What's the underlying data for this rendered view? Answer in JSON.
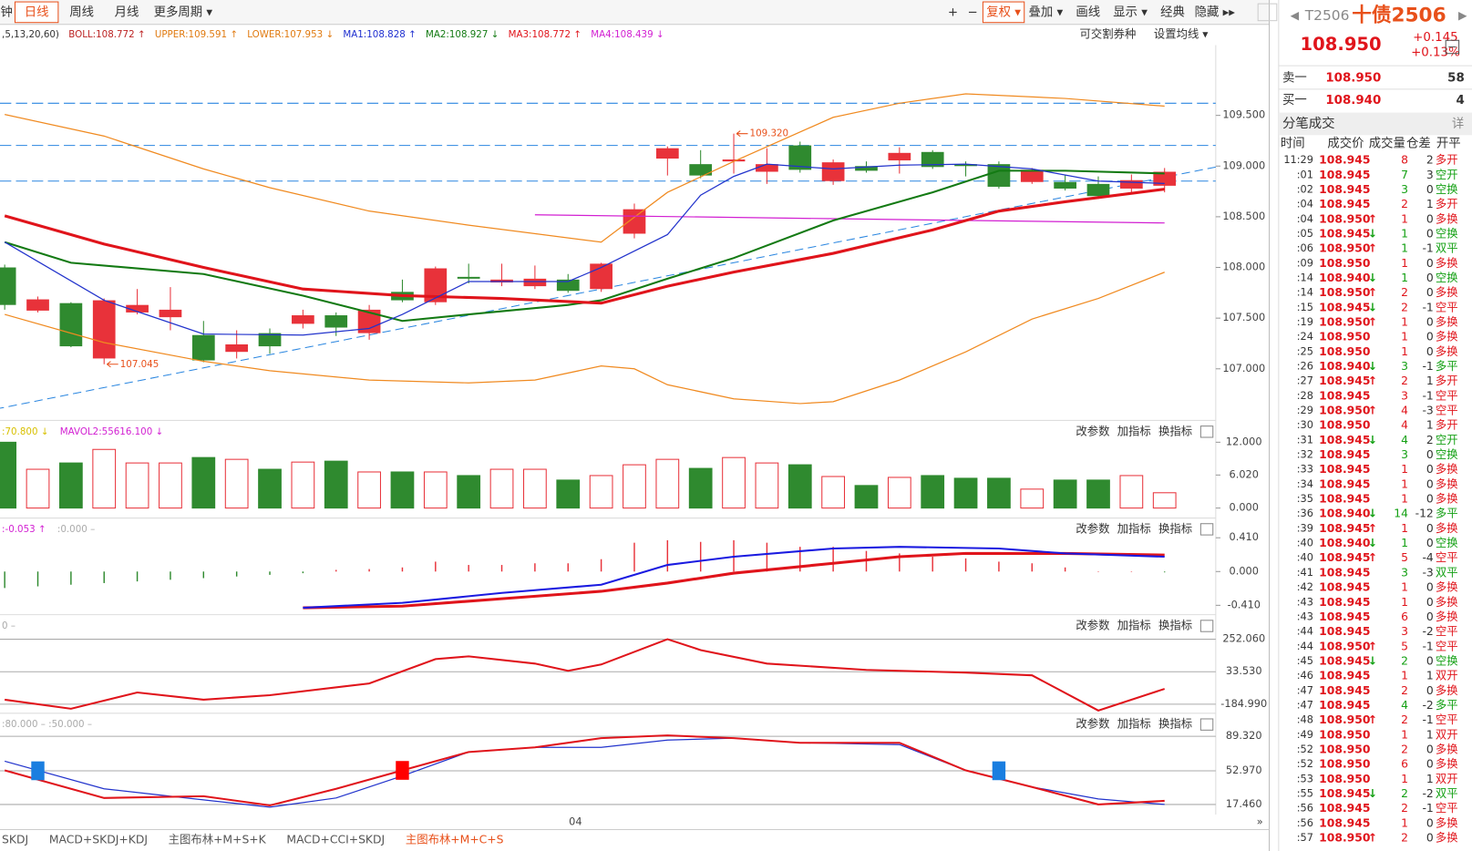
{
  "toolbar": {
    "left": [
      "钟",
      "日线",
      "周线",
      "月线",
      "更多周期 ▾"
    ],
    "active": 1,
    "right": [
      "+",
      "−",
      "复权 ▾",
      "叠加 ▾",
      "画线",
      "显示 ▾",
      "经典",
      "隐藏 ▸▸"
    ],
    "active_right": 2
  },
  "legend": [
    {
      "text": ",5,13,20,60)",
      "color": "#333"
    },
    {
      "text": "BOLL:108.772 ↑",
      "color": "#b22"
    },
    {
      "text": "UPPER:109.591 ↑",
      "color": "#e07a10"
    },
    {
      "text": "LOWER:107.953 ↓",
      "color": "#e07a10"
    },
    {
      "text": "MA1:108.828 ↑",
      "color": "#1f2fd0"
    },
    {
      "text": "MA2:108.927 ↓",
      "color": "#137a13"
    },
    {
      "text": "MA3:108.772 ↑",
      "color": "#e0141b"
    },
    {
      "text": "MA4:108.439 ↓",
      "color": "#d21fd2"
    }
  ],
  "main_buttons": [
    "可交割券种",
    "设置均线 ▾"
  ],
  "main": {
    "ylim": [
      106.537,
      110.194
    ],
    "yticks": [
      {
        "value": 109.5,
        "label": "109.500"
      },
      {
        "value": 109,
        "label": "109.000"
      },
      {
        "value": 108.5,
        "label": "108.500"
      },
      {
        "value": 108,
        "label": "108.000"
      },
      {
        "value": 107.5,
        "label": "107.500"
      },
      {
        "value": 107,
        "label": "107.000"
      }
    ],
    "candles": {
      "open": [
        108.0,
        107.574,
        107.648,
        107.102,
        107.556,
        107.509,
        107.333,
        107.167,
        107.352,
        107.444,
        107.528,
        107.352,
        107.759,
        107.657,
        107.907,
        107.852,
        107.815,
        107.88,
        107.787,
        108.333,
        109.074,
        109.019,
        109.046,
        108.944,
        109.204,
        108.852,
        109.0,
        109.056,
        109.139,
        109.019,
        109.019,
        108.843,
        108.843,
        108.824,
        108.778,
        108.806
      ],
      "high": [
        108.028,
        107.713,
        107.657,
        107.694,
        107.787,
        107.806,
        107.472,
        107.38,
        107.398,
        107.583,
        107.556,
        107.63,
        107.88,
        108.009,
        108.037,
        108.037,
        108.019,
        107.935,
        108.046,
        108.63,
        109.194,
        109.157,
        109.32,
        109.176,
        109.241,
        109.065,
        109.046,
        109.185,
        109.157,
        109.046,
        109.046,
        108.981,
        108.917,
        108.898,
        108.917,
        108.981
      ],
      "low": [
        107.583,
        107.556,
        107.213,
        107.045,
        107.537,
        107.38,
        107.065,
        107.102,
        107.148,
        107.398,
        107.324,
        107.287,
        107.657,
        107.63,
        107.843,
        107.815,
        107.787,
        107.75,
        107.759,
        108.287,
        108.907,
        108.88,
        108.926,
        108.824,
        108.935,
        108.815,
        108.935,
        108.926,
        108.972,
        108.898,
        108.778,
        108.824,
        108.759,
        108.676,
        108.741,
        108.741
      ],
      "close": [
        107.63,
        107.685,
        107.222,
        107.676,
        107.63,
        107.583,
        107.083,
        107.241,
        107.222,
        107.528,
        107.407,
        107.583,
        107.676,
        107.991,
        107.889,
        107.88,
        107.889,
        107.769,
        108.037,
        108.574,
        109.176,
        108.907,
        109.065,
        109.019,
        108.963,
        109.037,
        108.954,
        109.13,
        108.991,
        109.0,
        108.796,
        108.963,
        108.778,
        108.704,
        108.861,
        108.944
      ]
    },
    "lines": [
      {
        "color": "#f08a20",
        "width": 1.2,
        "x": [
          0,
          3,
          6,
          8,
          11,
          14,
          18,
          20,
          22,
          25,
          27,
          29,
          32,
          35
        ],
        "values": [
          109.509,
          109.296,
          108.972,
          108.787,
          108.556,
          108.417,
          108.25,
          108.741,
          109.046,
          109.481,
          109.62,
          109.713,
          109.667,
          109.591
        ]
      },
      {
        "color": "#f08a20",
        "width": 1.2,
        "x": [
          0,
          3,
          6,
          8,
          11,
          14,
          16,
          18,
          19,
          20,
          22,
          24,
          25,
          27,
          29,
          31,
          33,
          35
        ],
        "values": [
          107.537,
          107.259,
          107.074,
          106.981,
          106.889,
          106.861,
          106.889,
          107.028,
          107.0,
          106.843,
          106.704,
          106.657,
          106.676,
          106.889,
          107.167,
          107.491,
          107.694,
          107.953
        ]
      },
      {
        "color": "#d21fd2",
        "width": 1.2,
        "x": [
          16,
          25,
          35
        ],
        "values": [
          108.519,
          108.481,
          108.439
        ]
      },
      {
        "color": "#137a13",
        "width": 2,
        "x": [
          0,
          2,
          6,
          9,
          12,
          14,
          17,
          18,
          20,
          22,
          25,
          28,
          30,
          32,
          35
        ],
        "values": [
          108.25,
          108.046,
          107.935,
          107.722,
          107.472,
          107.537,
          107.63,
          107.676,
          107.889,
          108.093,
          108.463,
          108.741,
          108.954,
          108.954,
          108.927
        ]
      },
      {
        "color": "#e0141b",
        "width": 3,
        "x": [
          0,
          3,
          6,
          9,
          12,
          15,
          18,
          20,
          22,
          25,
          28,
          30,
          32,
          35
        ],
        "values": [
          108.509,
          108.231,
          108.0,
          107.787,
          107.722,
          107.694,
          107.648,
          107.815,
          107.954,
          108.139,
          108.37,
          108.556,
          108.648,
          108.772
        ]
      },
      {
        "color": "#2233cc",
        "width": 1.2,
        "x": [
          0,
          3,
          6,
          9,
          11,
          12,
          14,
          17,
          18,
          20,
          21,
          22,
          23,
          25,
          27,
          29,
          31,
          33,
          35
        ],
        "values": [
          108.25,
          107.676,
          107.343,
          107.333,
          107.398,
          107.537,
          107.861,
          107.861,
          108.0,
          108.324,
          108.713,
          108.898,
          109.019,
          108.972,
          109.009,
          109.019,
          108.972,
          108.852,
          108.828
        ]
      }
    ],
    "annotations": [
      {
        "index": 22,
        "text": "109.320",
        "at": "high"
      },
      {
        "index": 3,
        "text": "107.045",
        "at": "low"
      }
    ]
  },
  "volume": {
    "legend": [
      {
        "text": ":70.800 ↓",
        "color": "#d8c000"
      },
      {
        "text": "MAVOL2:55616.100 ↓",
        "color": "#d21fd2"
      }
    ],
    "ylim": [
      -1.48,
      15.29
    ],
    "yticks": [
      {
        "value": 12,
        "label": "12.000"
      },
      {
        "value": 6.02,
        "label": "6.020"
      },
      {
        "value": 0,
        "label": "0.000"
      }
    ],
    "values": [
      12.0,
      7.07,
      8.22,
      10.69,
      8.22,
      8.22,
      9.21,
      8.88,
      7.07,
      8.38,
      8.55,
      6.58,
      6.58,
      6.58,
      5.92,
      7.07,
      7.07,
      5.1,
      5.92,
      7.89,
      8.88,
      7.23,
      9.21,
      8.22,
      7.89,
      5.75,
      4.11,
      5.59,
      5.92,
      5.43,
      5.43,
      3.45,
      5.1,
      5.1,
      5.92,
      2.79
    ]
  },
  "macd": {
    "legend": [
      {
        "text": ":-0.053 ↑",
        "color": "#d21fd2"
      },
      {
        "text": ":0.000 –",
        "color": "#aaa"
      }
    ],
    "ylim": [
      -0.524,
      0.604
    ],
    "yticks": [
      {
        "value": 0.41,
        "label": "0.410"
      },
      {
        "value": 0,
        "label": "0.000"
      },
      {
        "value": -0.41,
        "label": "-0.410"
      }
    ],
    "bars": [
      -0.2,
      -0.18,
      -0.16,
      -0.14,
      -0.12,
      -0.1,
      -0.08,
      -0.06,
      -0.04,
      -0.02,
      0.02,
      0.03,
      0.05,
      0.12,
      0.08,
      0.08,
      0.1,
      0.1,
      0.15,
      0.35,
      0.38,
      0.36,
      0.38,
      0.35,
      0.3,
      0.3,
      0.25,
      0.22,
      0.18,
      0.16,
      0.12,
      0.1,
      0.05,
      0.0,
      0.0,
      -0.01
    ],
    "lines": [
      {
        "color": "#e0141b",
        "width": 3,
        "x": [
          9,
          12,
          15,
          18,
          20,
          22,
          25,
          27,
          29,
          32,
          35
        ],
        "values": [
          -0.44,
          -0.42,
          -0.33,
          -0.24,
          -0.14,
          -0.02,
          0.1,
          0.18,
          0.22,
          0.22,
          0.2
        ]
      },
      {
        "color": "#1a1ae0",
        "width": 2,
        "x": [
          9,
          12,
          15,
          18,
          20,
          22,
          25,
          27,
          30,
          32,
          35
        ],
        "values": [
          -0.44,
          -0.38,
          -0.26,
          -0.16,
          0.08,
          0.18,
          0.28,
          0.3,
          0.28,
          0.22,
          0.18
        ]
      }
    ]
  },
  "cci": {
    "legend": [
      {
        "text": "0 –",
        "color": "#aaa"
      }
    ],
    "ylim": [
      -245.7,
      391.7
    ],
    "grid": true,
    "yticks": [
      {
        "value": 252.06,
        "label": "252.060"
      },
      {
        "value": 33.53,
        "label": "33.530"
      },
      {
        "value": -184.99,
        "label": "-184.990"
      }
    ],
    "lines": [
      {
        "color": "#e0141b",
        "width": 2,
        "x": [
          0,
          2,
          4,
          6,
          8,
          11,
          13,
          14,
          16,
          17,
          18,
          20,
          21,
          23,
          26,
          29,
          31,
          33,
          35
        ],
        "values": [
          -154.6,
          -215.3,
          -106.1,
          -154.6,
          -124.3,
          -45.4,
          118.5,
          136.7,
          88.2,
          39.6,
          82.1,
          252.06,
          179.2,
          88.2,
          45.7,
          27.5,
          9.3,
          -227.5,
          -81.8
        ]
      }
    ]
  },
  "kdj": {
    "legend": [
      {
        "text": ":80.000 –  :50.000 –",
        "color": "#aaa"
      }
    ],
    "ylim": [
      6.8,
      109.7
    ],
    "grid": true,
    "yticks": [
      {
        "value": 89.32,
        "label": "89.320"
      },
      {
        "value": 52.97,
        "label": "52.970"
      },
      {
        "value": 17.46,
        "label": "17.460"
      }
    ],
    "lines": [
      {
        "color": "#2233cc",
        "width": 1.2,
        "x": [
          0,
          3,
          5,
          8,
          10,
          12,
          14,
          16,
          18,
          20,
          22,
          24,
          27,
          29,
          31,
          33,
          35
        ],
        "values": [
          63.1,
          34.0,
          26.2,
          14.6,
          24.3,
          47.6,
          72.8,
          77.7,
          77.7,
          85.4,
          87.4,
          82.5,
          80.6,
          53.4,
          35.9,
          23.3,
          17.5
        ]
      },
      {
        "color": "#e0141b",
        "width": 2,
        "x": [
          0,
          3,
          6,
          8,
          10,
          12,
          14,
          16,
          18,
          20,
          22,
          24,
          27,
          29,
          31,
          33,
          35
        ],
        "values": [
          53.4,
          24.3,
          26.2,
          16.5,
          34.0,
          53.4,
          72.8,
          77.7,
          87.4,
          90.3,
          87.4,
          82.5,
          82.5,
          53.4,
          35.9,
          17.5,
          21.3
        ]
      }
    ]
  },
  "panel_buttons": [
    "改参数",
    "加指标",
    "换指标"
  ],
  "x_label": "04",
  "tabs": [
    "SKDJ",
    "MACD+SKDJ+KDJ",
    "主图布林+M+S+K",
    "MACD+CCI+SKDJ",
    "主图布林+M+C+S"
  ],
  "active_tab": 4,
  "quote": {
    "code": "T2506",
    "name": "十债2506",
    "price": "108.950",
    "change": "+0.145",
    "pct": "+0.13%",
    "book": [
      [
        "卖一",
        "108.950",
        "58"
      ],
      [
        "买一",
        "108.940",
        "4"
      ]
    ],
    "trades_title": "分笔成交",
    "detail": "详",
    "headers": [
      "时间",
      "成交价",
      "成交量",
      "仓差",
      "开平"
    ],
    "trades": [
      [
        "11:29",
        "108.945",
        "",
        "8",
        "2",
        "多开"
      ],
      [
        ":01",
        "108.945",
        "",
        "7",
        "3",
        "空开"
      ],
      [
        ":02",
        "108.945",
        "",
        "3",
        "0",
        "空换"
      ],
      [
        ":04",
        "108.945",
        "",
        "2",
        "1",
        "多开"
      ],
      [
        ":04",
        "108.950",
        "↑",
        "1",
        "0",
        "多换"
      ],
      [
        ":05",
        "108.945",
        "↓",
        "1",
        "0",
        "空换"
      ],
      [
        ":06",
        "108.950",
        "↑",
        "1",
        "-1",
        "双平"
      ],
      [
        ":09",
        "108.950",
        "",
        "1",
        "0",
        "多换"
      ],
      [
        ":14",
        "108.940",
        "↓",
        "1",
        "0",
        "空换"
      ],
      [
        ":14",
        "108.950",
        "↑",
        "2",
        "0",
        "多换"
      ],
      [
        ":15",
        "108.945",
        "↓",
        "2",
        "-1",
        "空平"
      ],
      [
        ":19",
        "108.950",
        "↑",
        "1",
        "0",
        "多换"
      ],
      [
        ":24",
        "108.950",
        "",
        "1",
        "0",
        "多换"
      ],
      [
        ":25",
        "108.950",
        "",
        "1",
        "0",
        "多换"
      ],
      [
        ":26",
        "108.940",
        "↓",
        "3",
        "-1",
        "多平"
      ],
      [
        ":27",
        "108.945",
        "↑",
        "2",
        "1",
        "多开"
      ],
      [
        ":28",
        "108.945",
        "",
        "3",
        "-1",
        "空平"
      ],
      [
        ":29",
        "108.950",
        "↑",
        "4",
        "-3",
        "空平"
      ],
      [
        ":30",
        "108.950",
        "",
        "4",
        "1",
        "多开"
      ],
      [
        ":31",
        "108.945",
        "↓",
        "4",
        "2",
        "空开"
      ],
      [
        ":32",
        "108.945",
        "",
        "3",
        "0",
        "空换"
      ],
      [
        ":33",
        "108.945",
        "",
        "1",
        "0",
        "多换"
      ],
      [
        ":34",
        "108.945",
        "",
        "1",
        "0",
        "多换"
      ],
      [
        ":35",
        "108.945",
        "",
        "1",
        "0",
        "多换"
      ],
      [
        ":36",
        "108.940",
        "↓",
        "14",
        "-12",
        "多平"
      ],
      [
        ":39",
        "108.945",
        "↑",
        "1",
        "0",
        "多换"
      ],
      [
        ":40",
        "108.940",
        "↓",
        "1",
        "0",
        "空换"
      ],
      [
        ":40",
        "108.945",
        "↑",
        "5",
        "-4",
        "空平"
      ],
      [
        ":41",
        "108.945",
        "",
        "3",
        "-3",
        "双平"
      ],
      [
        ":42",
        "108.945",
        "",
        "1",
        "0",
        "多换"
      ],
      [
        ":43",
        "108.945",
        "",
        "1",
        "0",
        "多换"
      ],
      [
        ":43",
        "108.945",
        "",
        "6",
        "0",
        "多换"
      ],
      [
        ":44",
        "108.945",
        "",
        "3",
        "-2",
        "空平"
      ],
      [
        ":44",
        "108.950",
        "↑",
        "5",
        "-1",
        "空平"
      ],
      [
        ":45",
        "108.945",
        "↓",
        "2",
        "0",
        "空换"
      ],
      [
        ":46",
        "108.945",
        "",
        "1",
        "1",
        "双开"
      ],
      [
        ":47",
        "108.945",
        "",
        "2",
        "0",
        "多换"
      ],
      [
        ":47",
        "108.945",
        "",
        "4",
        "-2",
        "多平"
      ],
      [
        ":48",
        "108.950",
        "↑",
        "2",
        "-1",
        "空平"
      ],
      [
        ":49",
        "108.950",
        "",
        "1",
        "1",
        "双开"
      ],
      [
        ":52",
        "108.950",
        "",
        "2",
        "0",
        "多换"
      ],
      [
        ":52",
        "108.950",
        "",
        "6",
        "0",
        "多换"
      ],
      [
        ":53",
        "108.950",
        "",
        "1",
        "1",
        "双开"
      ],
      [
        ":55",
        "108.945",
        "↓",
        "2",
        "-2",
        "双平"
      ],
      [
        ":56",
        "108.945",
        "",
        "2",
        "-1",
        "空平"
      ],
      [
        ":56",
        "108.945",
        "",
        "1",
        "0",
        "多换"
      ],
      [
        ":57",
        "108.950",
        "↑",
        "2",
        "0",
        "多换"
      ]
    ]
  }
}
